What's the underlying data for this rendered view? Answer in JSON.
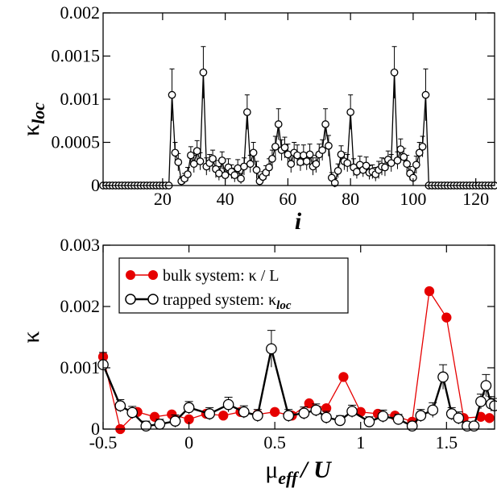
{
  "chart_data": [
    {
      "type": "scatter",
      "panel": "top",
      "xlabel": "i",
      "ylabel": "κ",
      "ylabel_sub": "loc",
      "xlim": [
        1,
        126
      ],
      "ylim": [
        0,
        0.002
      ],
      "xticks": [
        20,
        40,
        60,
        80,
        100,
        120
      ],
      "yticks": [
        0,
        0.0005,
        0.001,
        0.0015,
        0.002
      ],
      "ytick_labels": [
        "0",
        "0.0005",
        "0.001",
        "0.0015",
        "0.002"
      ],
      "grid": false,
      "series": [
        {
          "x": [
            1,
            2,
            3,
            4,
            5,
            6,
            7,
            8,
            9,
            10,
            11,
            12,
            13,
            14,
            15,
            16,
            17,
            18,
            19,
            20,
            21,
            22,
            23,
            24,
            25,
            26,
            27,
            28,
            29,
            30,
            31,
            32,
            33,
            34,
            35,
            36,
            37,
            38,
            39,
            40,
            41,
            42,
            43,
            44,
            45,
            46,
            47,
            48,
            49,
            50,
            51,
            52,
            53,
            54,
            55,
            56,
            57,
            58,
            59,
            60,
            61,
            62,
            63,
            64,
            65,
            66,
            67,
            68,
            69,
            70,
            71,
            72,
            73,
            74,
            75,
            76,
            77,
            78,
            79,
            80,
            81,
            82,
            83,
            84,
            85,
            86,
            87,
            88,
            89,
            90,
            91,
            92,
            93,
            94,
            95,
            96,
            97,
            98,
            99,
            100,
            101,
            102,
            103,
            104,
            105,
            106,
            107,
            108,
            109,
            110,
            111,
            112,
            113,
            114,
            115,
            116,
            117,
            118,
            119,
            120,
            121,
            122,
            123,
            124,
            125,
            126
          ],
          "y": [
            0,
            0,
            0,
            0,
            0,
            0,
            0,
            0,
            0,
            0,
            0,
            0,
            0,
            0,
            0,
            0,
            0,
            0,
            0,
            0,
            0,
            0,
            0.00105,
            0.00038,
            0.00027,
            5e-05,
            8e-05,
            0.00013,
            0.00035,
            0.00025,
            0.0004,
            0.00028,
            0.00131,
            0.00022,
            0.00026,
            0.00031,
            0.00019,
            0.00014,
            0.00029,
            0.00012,
            0.00021,
            0.00016,
            0.00012,
            0.0002,
            8e-05,
            0.00022,
            0.00085,
            0.00025,
            0.00038,
            0.00018,
            5e-05,
            0.0001,
            0.00015,
            0.00021,
            0.00031,
            0.00045,
            0.00071,
            0.00041,
            0.00044,
            0.00036,
            0.00025,
            0.00038,
            0.00035,
            0.00027,
            0.00035,
            0.00028,
            0.00036,
            0.00022,
            0.00025,
            0.00036,
            0.00041,
            0.00071,
            0.00046,
            9e-05,
            3e-05,
            0.00017,
            0.00036,
            0.00028,
            0.00026,
            0.00085,
            0.00021,
            0.00016,
            0.00024,
            0.00018,
            0.00023,
            0.00015,
            0.00016,
            0.00013,
            0.00018,
            0.00022,
            0.00021,
            0.0003,
            0.00026,
            0.00131,
            0.00029,
            0.00042,
            0.00033,
            0.00025,
            0.00014,
            9e-05,
            0.00024,
            0.00038,
            0.00045,
            0.00105,
            0,
            0,
            0,
            0,
            0,
            0,
            0,
            0,
            0,
            0,
            0,
            0,
            0,
            0,
            0,
            0,
            0,
            0,
            0,
            0,
            0,
            0
          ],
          "err": [
            0,
            0,
            0,
            0,
            0,
            0,
            0,
            0,
            0,
            0,
            0,
            0,
            0,
            0,
            0,
            0,
            0,
            0,
            0,
            0,
            0,
            0,
            0.0003,
            0.00012,
            0.0001,
            5e-05,
            6e-05,
            8e-05,
            0.0001,
            0.0001,
            0.00012,
            0.0001,
            0.0003,
            0.0001,
            0.0001,
            0.0001,
            0.0001,
            8e-05,
            0.0001,
            8e-05,
            0.0001,
            8e-05,
            8e-05,
            0.0001,
            6e-05,
            0.0001,
            0.0002,
            0.0001,
            0.00012,
            0.0001,
            5e-05,
            6e-05,
            8e-05,
            0.0001,
            0.0001,
            0.00012,
            0.00018,
            0.00012,
            0.00012,
            0.00012,
            0.0001,
            0.00012,
            0.00012,
            0.0001,
            0.00012,
            0.0001,
            0.00012,
            0.0001,
            0.0001,
            0.00012,
            0.00012,
            0.00018,
            0.00012,
            6e-05,
            5e-05,
            8e-05,
            0.0001,
            0.0001,
            0.0001,
            0.0002,
            0.0001,
            8e-05,
            0.0001,
            8e-05,
            0.0001,
            8e-05,
            8e-05,
            8e-05,
            0.0001,
            0.0001,
            0.0001,
            0.0001,
            0.0001,
            0.0003,
            0.0001,
            0.00012,
            0.0001,
            0.0001,
            8e-05,
            6e-05,
            0.0001,
            0.00012,
            0.00012,
            0.0003,
            0,
            0,
            0,
            0,
            0,
            0,
            0,
            0,
            0,
            0,
            0,
            0,
            0,
            0,
            0,
            0,
            0,
            0,
            0,
            0,
            0,
            0
          ]
        }
      ]
    },
    {
      "type": "line",
      "panel": "bottom",
      "xlabel": "μ",
      "xlabel_sub": "eff",
      "xlabel_rest": "/ U",
      "ylabel": "κ",
      "xlim": [
        -0.5,
        1.78
      ],
      "ylim": [
        0,
        0.003
      ],
      "xticks": [
        -0.5,
        0,
        0.5,
        1,
        1.5
      ],
      "xtick_labels": [
        "-0.5",
        "0",
        "0.5",
        "1",
        "1.5"
      ],
      "yticks": [
        0,
        0.001,
        0.002,
        0.003
      ],
      "ytick_labels": [
        "0",
        "0.001",
        "0.002",
        "0.003"
      ],
      "grid": false,
      "legend_position": "top-left",
      "series": [
        {
          "name": "bulk system: κ / L",
          "color": "#e60000",
          "marker": "filled-circle",
          "x": [
            -0.5,
            -0.4,
            -0.3,
            -0.2,
            -0.1,
            0,
            0.1,
            0.2,
            0.3,
            0.4,
            0.5,
            0.6,
            0.7,
            0.8,
            0.9,
            1.0,
            1.1,
            1.2,
            1.3,
            1.4,
            1.5,
            1.6,
            1.7,
            1.75
          ],
          "y": [
            0.00118,
            0.0,
            0.00028,
            0.0002,
            0.00024,
            0.00016,
            0.00025,
            0.00022,
            0.00028,
            0.00024,
            0.00028,
            0.00022,
            0.00042,
            0.00034,
            0.00085,
            0.00028,
            0.00025,
            0.00022,
            0.00012,
            0.00225,
            0.00182,
            0.00018,
            0.0002,
            0.00018
          ]
        },
        {
          "name": "trapped system: κ",
          "name_sub": "loc",
          "color": "#000000",
          "marker": "open-circle",
          "x": [
            -0.5,
            -0.4,
            -0.33,
            -0.25,
            -0.17,
            -0.08,
            0.0,
            0.12,
            0.23,
            0.32,
            0.4,
            0.48,
            0.58,
            0.67,
            0.74,
            0.8,
            0.88,
            0.95,
            1.05,
            1.13,
            1.22,
            1.3,
            1.35,
            1.42,
            1.48,
            1.53,
            1.57,
            1.62,
            1.66,
            1.7,
            1.73,
            1.76,
            1.78
          ],
          "y": [
            0.00105,
            0.00038,
            0.00027,
            5e-05,
            8e-05,
            0.00013,
            0.00035,
            0.00025,
            0.0004,
            0.00028,
            0.00022,
            0.00131,
            0.00022,
            0.00026,
            0.00031,
            0.00019,
            0.00014,
            0.00029,
            0.00012,
            0.00021,
            0.00016,
            5e-05,
            0.00022,
            0.00031,
            0.00085,
            0.00025,
            0.00018,
            5e-05,
            5e-05,
            0.00045,
            0.00071,
            0.00041,
            0.00038
          ],
          "err": [
            0.0002,
            0.0001,
            0.0001,
            8e-05,
            8e-05,
            0.0001,
            0.0001,
            0.0001,
            0.00012,
            0.0001,
            0.0001,
            0.0003,
            0.0001,
            0.0001,
            0.0001,
            0.0001,
            8e-05,
            0.0001,
            8e-05,
            0.0001,
            8e-05,
            5e-05,
            0.0001,
            0.00012,
            0.0002,
            0.0001,
            0.0001,
            6e-05,
            6e-05,
            0.00012,
            0.00018,
            0.00012,
            0.00012
          ]
        }
      ]
    }
  ]
}
